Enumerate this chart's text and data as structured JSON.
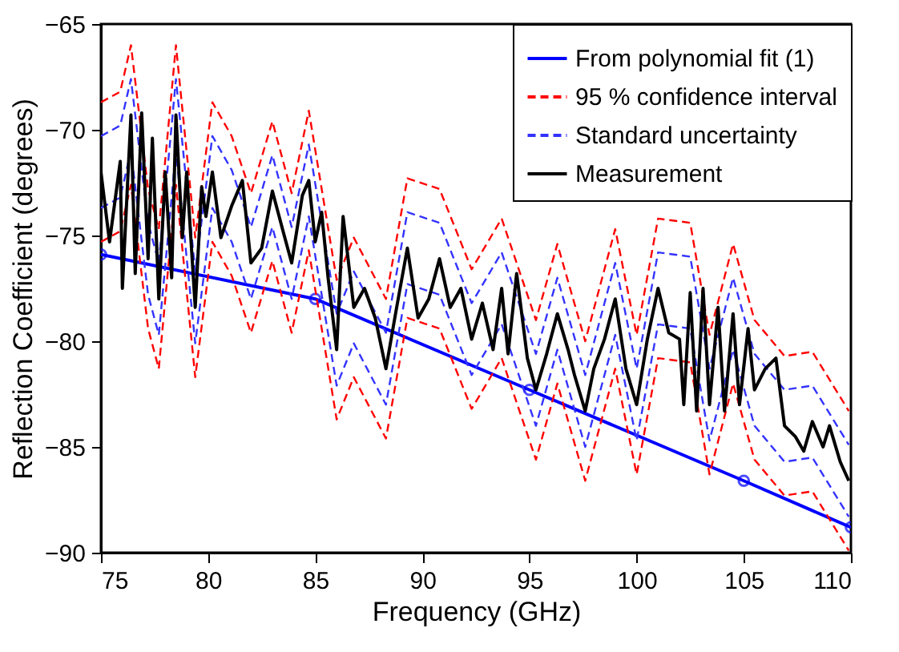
{
  "chart_data": {
    "type": "line",
    "xlabel": "Frequency (GHz)",
    "ylabel": "Reflection Coefficient (degrees)",
    "xlim": [
      75,
      110
    ],
    "xticks": [
      75,
      80,
      85,
      90,
      95,
      100,
      105,
      110
    ],
    "ylim": [
      -90,
      -65
    ],
    "yticks": [
      -90,
      -85,
      -80,
      -75,
      -70,
      -65
    ],
    "grid": false,
    "legend": "top right",
    "series": [
      {
        "name": "From polynomial fit (1)",
        "color": "#0000ff",
        "line_style": "solid",
        "marker": "circle",
        "x": [
          75,
          85,
          95,
          105,
          110
        ],
        "values": [
          -75.9,
          -78.0,
          -82.3,
          -86.6,
          -88.8
        ]
      },
      {
        "name": "95 % confidence interval",
        "color": "#ff0000",
        "line_style": "dashed",
        "x": [
          75.0,
          75.9,
          76.4,
          77.2,
          77.7,
          78.5,
          79.4,
          80.2,
          81.1,
          82.0,
          83.0,
          83.9,
          84.7,
          86.0,
          86.8,
          88.3,
          89.3,
          90.8,
          92.3,
          93.7,
          95.3,
          96.3,
          97.6,
          99.0,
          100.0,
          101.0,
          102.5,
          103.4,
          104.5,
          105.5,
          106.9,
          108.2,
          109.9
        ],
        "values": [
          -68.7,
          -68.2,
          -66.0,
          -72.8,
          -74.7,
          -66.0,
          -75.1,
          -68.7,
          -70.3,
          -73.0,
          -69.6,
          -73.0,
          -69.1,
          -77.1,
          -75.1,
          -78.0,
          -72.3,
          -72.8,
          -76.6,
          -74.2,
          -79.0,
          -75.4,
          -80.0,
          -74.7,
          -79.7,
          -74.2,
          -74.4,
          -79.7,
          -75.4,
          -79.0,
          -80.7,
          -80.5,
          -83.3
        ]
      },
      {
        "color": "#ff0000",
        "line_style": "dashed",
        "x": [
          75.0,
          75.9,
          76.4,
          77.2,
          77.7,
          78.5,
          79.4,
          80.2,
          81.1,
          82.0,
          83.0,
          83.9,
          84.7,
          86.0,
          86.8,
          88.3,
          89.3,
          90.8,
          92.3,
          93.7,
          95.3,
          96.3,
          97.6,
          99.0,
          100.0,
          101.0,
          102.5,
          103.4,
          104.5,
          105.5,
          106.9,
          108.2,
          109.9
        ],
        "values": [
          -75.3,
          -74.8,
          -72.6,
          -79.4,
          -81.3,
          -72.6,
          -81.7,
          -75.3,
          -76.9,
          -79.6,
          -76.2,
          -79.6,
          -75.7,
          -83.7,
          -81.7,
          -84.6,
          -78.9,
          -79.4,
          -83.2,
          -80.8,
          -85.6,
          -82.0,
          -86.6,
          -81.3,
          -86.3,
          -80.8,
          -81.0,
          -86.3,
          -82.0,
          -85.6,
          -87.3,
          -87.1,
          -89.9
        ]
      },
      {
        "name": "Standard uncertainty",
        "color": "#3333ff",
        "line_style": "dashed",
        "x": [
          75.0,
          75.9,
          76.4,
          77.2,
          77.7,
          78.5,
          79.4,
          80.2,
          81.1,
          82.0,
          83.0,
          83.9,
          84.7,
          86.0,
          86.8,
          88.3,
          89.3,
          90.8,
          92.3,
          93.7,
          95.3,
          96.3,
          97.6,
          99.0,
          100.0,
          101.0,
          102.5,
          103.4,
          104.5,
          105.5,
          106.9,
          108.2,
          109.9
        ],
        "values": [
          -70.3,
          -69.8,
          -67.6,
          -74.4,
          -76.3,
          -67.6,
          -76.7,
          -70.3,
          -71.9,
          -74.6,
          -71.2,
          -74.6,
          -70.7,
          -78.7,
          -76.7,
          -79.6,
          -73.9,
          -74.4,
          -78.2,
          -75.8,
          -80.6,
          -77.0,
          -81.6,
          -76.3,
          -81.3,
          -75.8,
          -76.0,
          -81.3,
          -77.0,
          -80.6,
          -82.3,
          -82.1,
          -84.9
        ]
      },
      {
        "color": "#3333ff",
        "line_style": "dashed",
        "x": [
          75.0,
          75.9,
          76.4,
          77.2,
          77.7,
          78.5,
          79.4,
          80.2,
          81.1,
          82.0,
          83.0,
          83.9,
          84.7,
          86.0,
          86.8,
          88.3,
          89.3,
          90.8,
          92.3,
          93.7,
          95.3,
          96.3,
          97.6,
          99.0,
          100.0,
          101.0,
          102.5,
          103.4,
          104.5,
          105.5,
          106.9,
          108.2,
          109.9
        ],
        "values": [
          -73.7,
          -73.2,
          -71.0,
          -77.8,
          -79.7,
          -71.0,
          -80.1,
          -73.7,
          -75.3,
          -78.0,
          -74.6,
          -78.0,
          -74.1,
          -82.1,
          -80.1,
          -83.0,
          -77.3,
          -77.8,
          -81.6,
          -79.2,
          -84.0,
          -80.4,
          -85.0,
          -79.7,
          -84.7,
          -79.2,
          -79.4,
          -84.7,
          -80.4,
          -84.0,
          -85.7,
          -85.5,
          -88.3
        ]
      },
      {
        "name": "Measurement",
        "color": "#000000",
        "line_style": "solid",
        "x": [
          75.0,
          75.4,
          75.9,
          76.0,
          76.4,
          76.6,
          76.9,
          77.2,
          77.4,
          77.7,
          78.0,
          78.3,
          78.5,
          78.8,
          79.0,
          79.4,
          79.7,
          79.9,
          80.2,
          80.6,
          81.1,
          81.6,
          82.0,
          82.5,
          83.0,
          83.5,
          83.9,
          84.4,
          84.7,
          85.0,
          85.3,
          85.6,
          86.0,
          86.3,
          86.8,
          87.3,
          87.8,
          88.3,
          88.8,
          89.3,
          89.8,
          90.3,
          90.8,
          91.3,
          91.8,
          92.3,
          92.8,
          93.3,
          93.7,
          94.0,
          94.4,
          94.9,
          95.3,
          95.8,
          96.3,
          96.8,
          97.1,
          97.6,
          98.0,
          98.5,
          99.0,
          99.5,
          100.0,
          100.5,
          101.0,
          101.5,
          102.0,
          102.2,
          102.5,
          102.8,
          103.1,
          103.4,
          103.8,
          104.1,
          104.5,
          104.8,
          105.2,
          105.5,
          106.0,
          106.5,
          106.9,
          107.4,
          107.8,
          108.2,
          108.7,
          109.0,
          109.5,
          109.9
        ],
        "values": [
          -72.0,
          -75.3,
          -71.5,
          -77.5,
          -69.3,
          -76.8,
          -69.2,
          -76.1,
          -70.4,
          -78.0,
          -72.0,
          -77.0,
          -69.3,
          -75.1,
          -72.0,
          -78.4,
          -72.7,
          -74.1,
          -72.0,
          -75.1,
          -73.6,
          -72.4,
          -76.3,
          -75.6,
          -72.9,
          -74.8,
          -76.3,
          -73.1,
          -72.4,
          -75.3,
          -73.9,
          -77.0,
          -80.4,
          -74.1,
          -78.4,
          -77.5,
          -78.9,
          -81.3,
          -78.4,
          -75.6,
          -78.9,
          -78.0,
          -76.1,
          -78.4,
          -77.5,
          -79.9,
          -78.2,
          -80.4,
          -77.5,
          -80.6,
          -76.8,
          -80.8,
          -82.3,
          -80.6,
          -78.7,
          -80.4,
          -81.6,
          -83.3,
          -81.3,
          -79.9,
          -78.0,
          -81.3,
          -83.0,
          -79.9,
          -77.5,
          -79.6,
          -79.9,
          -83.0,
          -77.7,
          -83.3,
          -77.5,
          -83.0,
          -78.4,
          -83.3,
          -78.7,
          -83.0,
          -79.4,
          -82.3,
          -81.3,
          -80.8,
          -84.0,
          -84.5,
          -85.2,
          -83.8,
          -85.0,
          -84.0,
          -85.7,
          -86.6
        ]
      }
    ]
  }
}
